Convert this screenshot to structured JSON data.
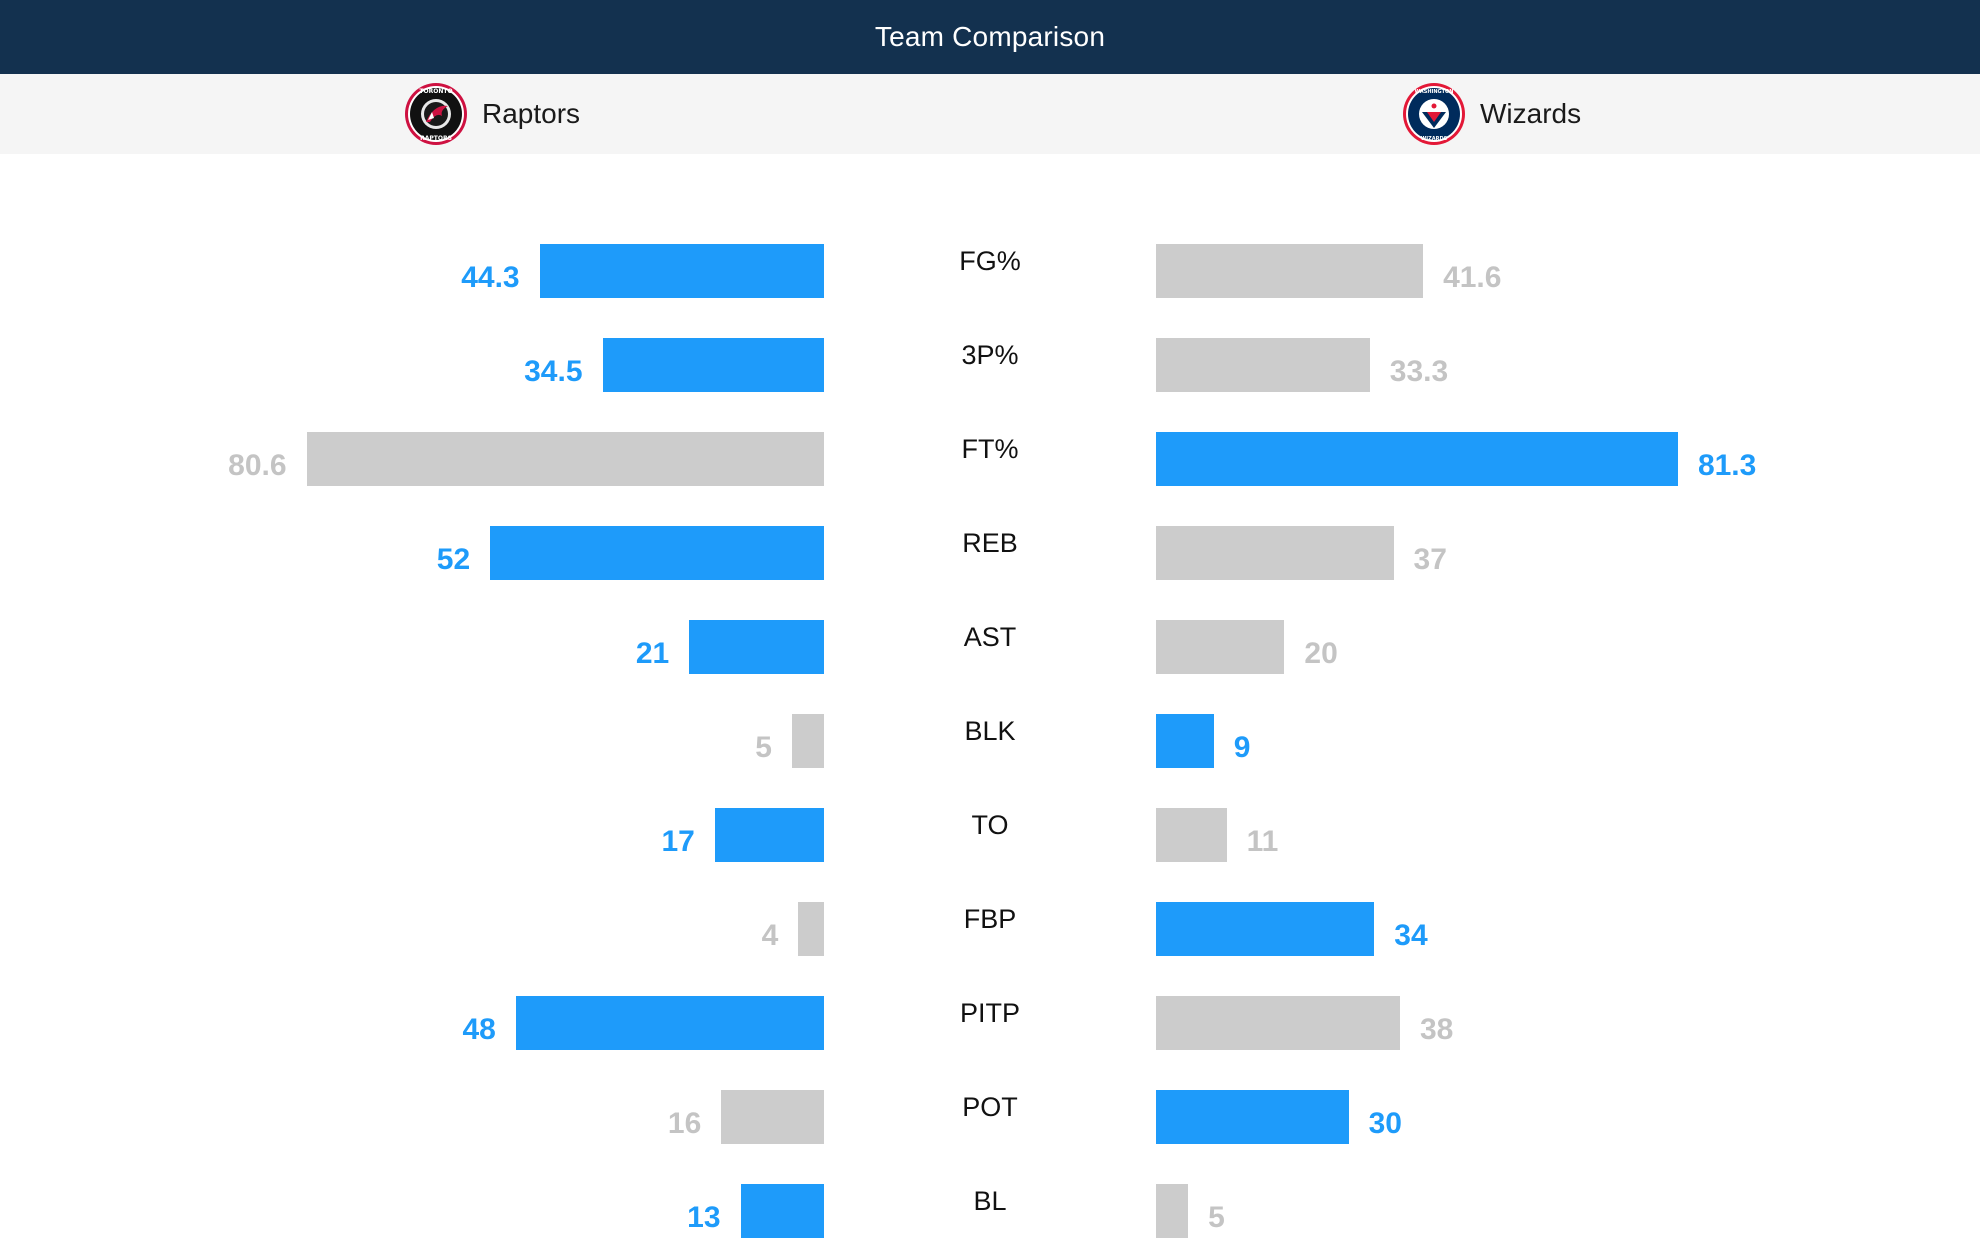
{
  "header": {
    "title": "Team Comparison"
  },
  "teams": {
    "home": {
      "name": "Raptors",
      "logo_icon": "raptors-logo-icon",
      "logo_text": "TORONTO RAPTORS"
    },
    "away": {
      "name": "Wizards",
      "logo_icon": "wizards-logo-icon",
      "logo_text": "WASHINGTON WIZARDS"
    }
  },
  "colors": {
    "header_bg": "#13314f",
    "leader": "#1e9bfa",
    "trailer": "#cccccc",
    "trailer_text": "#c4c4c4"
  },
  "stats": [
    {
      "label": "FG%",
      "home": "44.3",
      "away": "41.6",
      "home_value": 44.3,
      "away_value": 41.6,
      "leader": "home"
    },
    {
      "label": "3P%",
      "home": "34.5",
      "away": "33.3",
      "home_value": 34.5,
      "away_value": 33.3,
      "leader": "home"
    },
    {
      "label": "FT%",
      "home": "80.6",
      "away": "81.3",
      "home_value": 80.6,
      "away_value": 81.3,
      "leader": "away"
    },
    {
      "label": "REB",
      "home": "52",
      "away": "37",
      "home_value": 52,
      "away_value": 37,
      "leader": "home"
    },
    {
      "label": "AST",
      "home": "21",
      "away": "20",
      "home_value": 21,
      "away_value": 20,
      "leader": "home"
    },
    {
      "label": "BLK",
      "home": "5",
      "away": "9",
      "home_value": 5,
      "away_value": 9,
      "leader": "away"
    },
    {
      "label": "TO",
      "home": "17",
      "away": "11",
      "home_value": 17,
      "away_value": 11,
      "leader": "home"
    },
    {
      "label": "FBP",
      "home": "4",
      "away": "34",
      "home_value": 4,
      "away_value": 34,
      "leader": "away"
    },
    {
      "label": "PITP",
      "home": "48",
      "away": "38",
      "home_value": 48,
      "away_value": 38,
      "leader": "home"
    },
    {
      "label": "POT",
      "home": "16",
      "away": "30",
      "home_value": 16,
      "away_value": 30,
      "leader": "away"
    },
    {
      "label": "BL",
      "home": "13",
      "away": "5",
      "home_value": 13,
      "away_value": 5,
      "leader": "home"
    }
  ]
}
